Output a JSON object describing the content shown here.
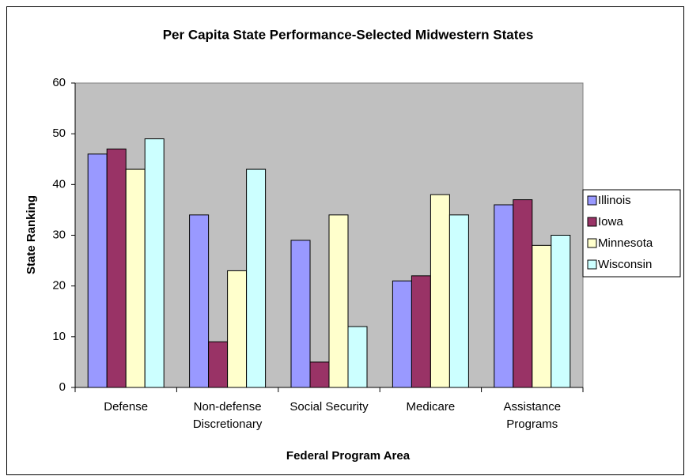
{
  "chart_data": {
    "type": "bar",
    "title": "Per Capita State Performance-Selected Midwestern States",
    "x_label": "Federal Program Area",
    "y_label": "State Ranking",
    "categories": [
      "Defense",
      "Non-defense Discretionary",
      "Social Security",
      "Medicare",
      "Assistance Programs"
    ],
    "series": [
      {
        "name": "Illinois",
        "color": "#9999ff",
        "values": [
          46,
          34,
          29,
          21,
          36
        ]
      },
      {
        "name": "Iowa",
        "color": "#993366",
        "values": [
          47,
          9,
          5,
          22,
          37
        ]
      },
      {
        "name": "Minnesota",
        "color": "#ffffcc",
        "values": [
          43,
          23,
          34,
          38,
          28
        ]
      },
      {
        "name": "Wisconsin",
        "color": "#ccffff",
        "values": [
          49,
          43,
          12,
          34,
          30
        ]
      }
    ],
    "ylim": [
      0,
      60
    ],
    "yticks": [
      0,
      10,
      20,
      30,
      40,
      50,
      60
    ],
    "grid": false,
    "legend": "right",
    "plot_background": "#c0c0c0"
  }
}
